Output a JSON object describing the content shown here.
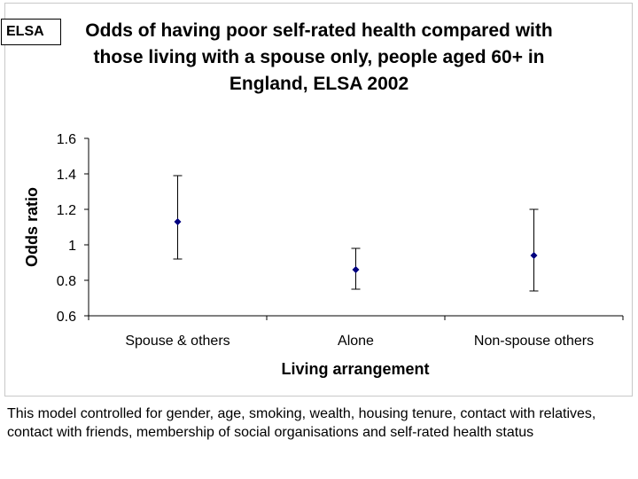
{
  "badge": {
    "label": "ELSA"
  },
  "footnote": "This model controlled for gender, age, smoking, wealth, housing tenure, contact with relatives, contact with friends, membership of social organisations and self-rated health status",
  "colors": {
    "marker": "#00007f",
    "error_bar": "#000000",
    "grid": "#c0c0c0"
  },
  "chart_data": {
    "type": "scatter",
    "title": "Odds of having poor self-rated health compared with those living with a spouse only, people aged 60+ in England, ELSA 2002",
    "xlabel": "Living arrangement",
    "ylabel": "Odds ratio",
    "categories": [
      "Spouse & others",
      "Alone",
      "Non-spouse others"
    ],
    "values": [
      1.13,
      0.86,
      0.94
    ],
    "lower": [
      0.92,
      0.75,
      0.74
    ],
    "upper": [
      1.39,
      0.98,
      1.2
    ],
    "ylim": [
      0.6,
      1.6
    ],
    "yticks": [
      0.6,
      0.8,
      1,
      1.2,
      1.4,
      1.6
    ],
    "grid": false,
    "legend": "none"
  }
}
